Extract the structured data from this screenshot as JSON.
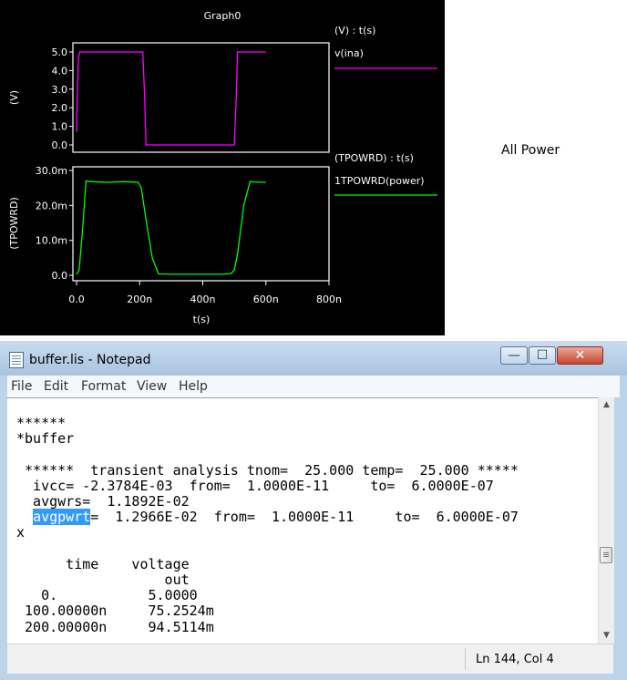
{
  "graph": {
    "title": "Graph0",
    "top_plot": {
      "ylabel": "(V)",
      "legend_header": "(V) : t(s)",
      "series_name": "v(ina)",
      "series_color": "#ff00ff",
      "yticks": [
        "5.0",
        "4.0",
        "3.0",
        "2.0",
        "1.0",
        "0.0"
      ]
    },
    "bottom_plot": {
      "ylabel": "(TPOWRD)",
      "legend_header": "(TPOWRD) : t(s)",
      "series_name": "1TPOWRD(power)",
      "series_color": "#00ff00",
      "yticks": [
        "30.0m",
        "20.0m",
        "10.0m",
        "0.0"
      ]
    },
    "xticks": [
      "0.0",
      "200n",
      "400n",
      "600n",
      "800n"
    ],
    "xlabel": "t(s)"
  },
  "chart_data": [
    {
      "type": "line",
      "ylabel": "(V)",
      "xlabel": "t(s)",
      "xlim": [
        0,
        800
      ],
      "ylim": [
        0,
        5
      ],
      "series": [
        {
          "name": "v(ina)",
          "color": "#ff00ff",
          "x": [
            0,
            3,
            6,
            10,
            210,
            216,
            220,
            500,
            506,
            510,
            600
          ],
          "y": [
            0.7,
            3.0,
            4.7,
            5.0,
            5.0,
            2.5,
            0.0,
            0.0,
            2.5,
            5.0,
            5.0
          ]
        }
      ]
    },
    {
      "type": "line",
      "ylabel": "(TPOWRD)",
      "xlabel": "t(s)",
      "xlim": [
        0,
        800
      ],
      "ylim": [
        0,
        0.03
      ],
      "series": [
        {
          "name": "1TPOWRD(power)",
          "color": "#00ff00",
          "x": [
            0,
            8,
            20,
            30,
            50,
            100,
            150,
            195,
            205,
            220,
            240,
            260,
            300,
            400,
            460,
            490,
            500,
            510,
            530,
            550,
            560,
            600
          ],
          "y": [
            0.0002,
            0.0015,
            0.014,
            0.027,
            0.0268,
            0.0266,
            0.0268,
            0.0266,
            0.025,
            0.016,
            0.005,
            0.0004,
            0.0003,
            0.0003,
            0.0003,
            0.0005,
            0.0015,
            0.006,
            0.02,
            0.0268,
            0.0267,
            0.0266
          ]
        }
      ]
    }
  ],
  "side_label": "All Power",
  "notepad": {
    "title": "buffer.lis - Notepad",
    "menu": [
      "File",
      "Edit",
      "Format",
      "View",
      "Help"
    ],
    "lines": [
      "******",
      "*buffer",
      "",
      " ******  transient analysis tnom=  25.000 temp=  25.000 *****",
      "  ivcc= -2.3784E-03  from=  1.0000E-11     to=  6.0000E-07",
      "  avgwrs=  1.1892E-02"
    ],
    "selected_word": "avgpwrt",
    "selected_line_rest": "=  1.2966E-02  from=  1.0000E-11     to=  6.0000E-07",
    "lines_after": [
      "x",
      "",
      "      time    voltage",
      "                  out",
      "   0.           5.0000",
      " 100.00000n     75.2524m",
      " 200.00000n     94.5114m"
    ],
    "status_position": "Ln 144, Col 4",
    "buttons": {
      "minimize": "—",
      "maximize": "☐",
      "close": "✕"
    },
    "scroll": {
      "up": "▲",
      "down": "▼"
    }
  }
}
